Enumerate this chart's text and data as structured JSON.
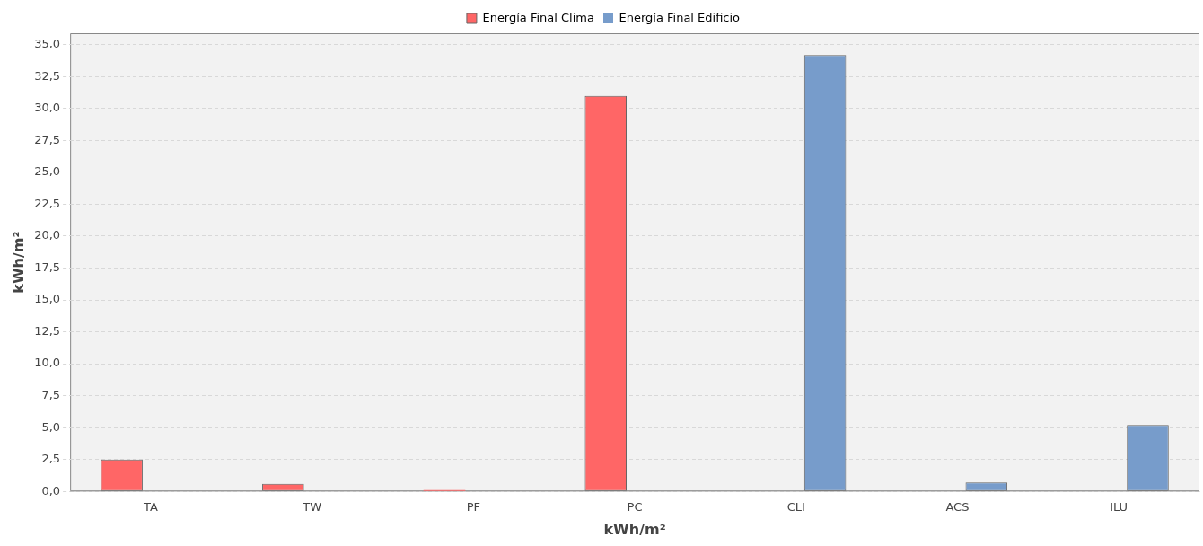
{
  "chart_data": {
    "type": "bar",
    "xlabel": "kWh/m²",
    "ylabel": "kWh/m²",
    "categories": [
      "TA",
      "TW",
      "PF",
      "PC",
      "CLI",
      "ACS",
      "ILU"
    ],
    "series": [
      {
        "name": "Energía Final Clima",
        "color": "#ff6666",
        "values": [
          2.5,
          0.6,
          0.1,
          31.0,
          0,
          0,
          0
        ]
      },
      {
        "name": "Energía Final Edificio",
        "color": "#779ccb",
        "values": [
          0,
          0,
          0,
          0,
          34.2,
          0.7,
          5.2
        ]
      }
    ],
    "ylim": [
      0,
      35.9
    ],
    "yticks": [
      {
        "value": 0,
        "label": "0,0"
      },
      {
        "value": 2.5,
        "label": "2,5"
      },
      {
        "value": 5,
        "label": "5,0"
      },
      {
        "value": 7.5,
        "label": "7,5"
      },
      {
        "value": 10,
        "label": "10,0"
      },
      {
        "value": 12.5,
        "label": "12,5"
      },
      {
        "value": 15,
        "label": "15,0"
      },
      {
        "value": 17.5,
        "label": "17,5"
      },
      {
        "value": 20,
        "label": "20,0"
      },
      {
        "value": 22.5,
        "label": "22,5"
      },
      {
        "value": 25,
        "label": "25,0"
      },
      {
        "value": 27.5,
        "label": "27,5"
      },
      {
        "value": 30,
        "label": "30,0"
      },
      {
        "value": 32.5,
        "label": "32,5"
      },
      {
        "value": 35,
        "label": "35,0"
      }
    ],
    "grid": "y",
    "legend": "top"
  }
}
